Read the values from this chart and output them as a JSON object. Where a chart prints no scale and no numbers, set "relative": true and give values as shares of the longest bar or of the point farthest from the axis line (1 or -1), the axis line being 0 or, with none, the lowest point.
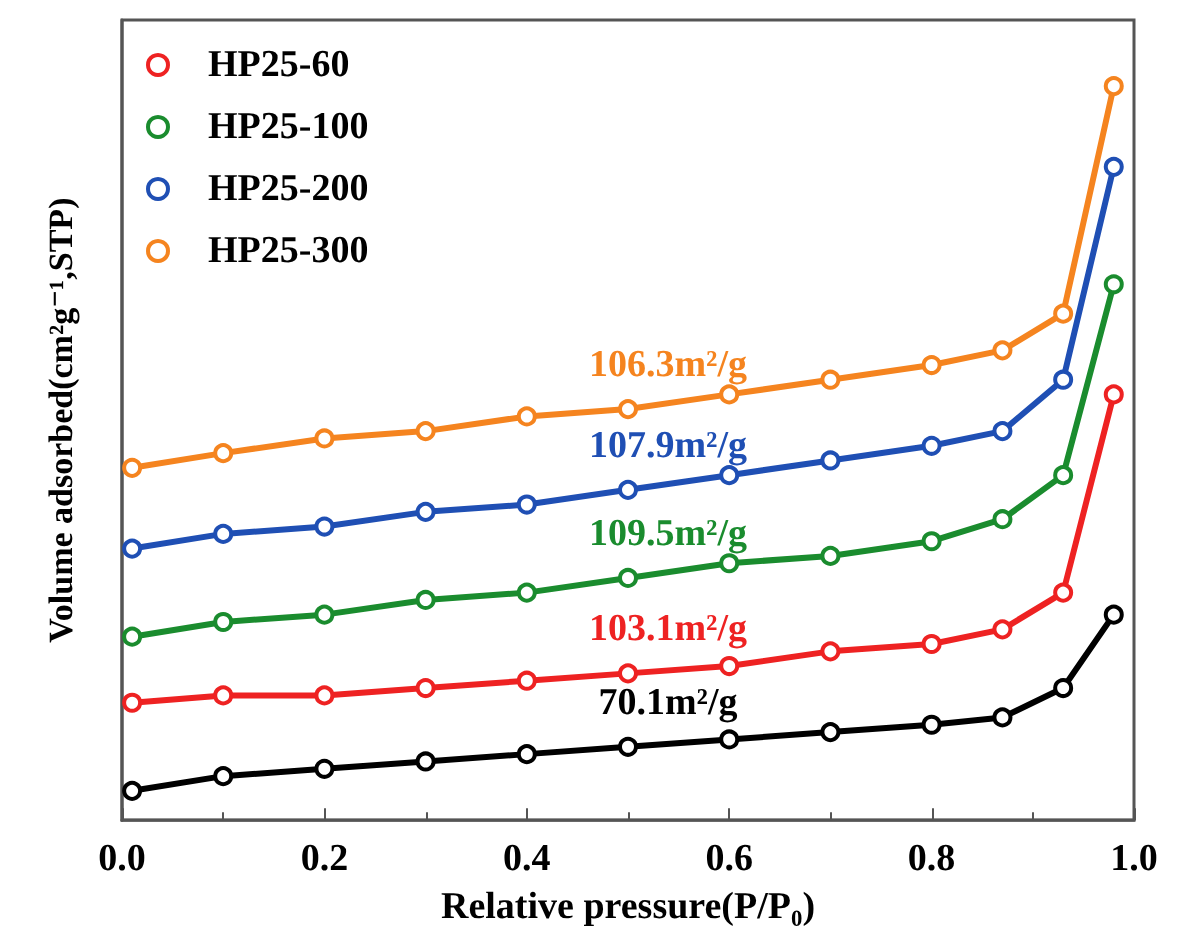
{
  "chart_data": {
    "type": "line",
    "relative": true,
    "xlabel": "Relative pressure(P/P₀)",
    "ylabel": "Volume adsorbed(cm²g⁻¹,STP)",
    "x": [
      0.01,
      0.1,
      0.2,
      0.3,
      0.4,
      0.5,
      0.6,
      0.7,
      0.8,
      0.87,
      0.93,
      0.98
    ],
    "xlim": [
      0,
      1
    ],
    "xticks": [
      {
        "value": 0,
        "label": "0.0"
      },
      {
        "value": 0.2,
        "label": "0.2"
      },
      {
        "value": 0.4,
        "label": "0.4"
      },
      {
        "value": 0.6,
        "label": "0.6"
      },
      {
        "value": 0.8,
        "label": "0.8"
      },
      {
        "value": 1,
        "label": "1.0"
      }
    ],
    "tick_labels": "x",
    "grid": false,
    "legend": "top left",
    "marker": "circle",
    "line_style": "solid",
    "series": [
      {
        "color": "#000000",
        "values": [
          0.04,
          0.06,
          0.07,
          0.08,
          0.09,
          0.1,
          0.11,
          0.12,
          0.13,
          0.14,
          0.18,
          0.28
        ]
      },
      {
        "name": "HP25-60",
        "color": "#ee2222",
        "values": [
          0.16,
          0.17,
          0.17,
          0.18,
          0.19,
          0.2,
          0.21,
          0.23,
          0.24,
          0.26,
          0.31,
          0.58
        ]
      },
      {
        "name": "HP25-100",
        "color": "#1a8c2e",
        "values": [
          0.25,
          0.27,
          0.28,
          0.3,
          0.31,
          0.33,
          0.35,
          0.36,
          0.38,
          0.41,
          0.47,
          0.73
        ]
      },
      {
        "name": "HP25-200",
        "color": "#1f4fb4",
        "values": [
          0.37,
          0.39,
          0.4,
          0.42,
          0.43,
          0.45,
          0.47,
          0.49,
          0.51,
          0.53,
          0.6,
          0.89
        ]
      },
      {
        "name": "HP25-300",
        "color": "#f5841f",
        "values": [
          0.48,
          0.5,
          0.52,
          0.53,
          0.55,
          0.56,
          0.58,
          0.6,
          0.62,
          0.64,
          0.69,
          1.0
        ]
      }
    ],
    "annotations": [
      "70.1m²/g",
      "103.1m²/g",
      "109.5m²/g",
      "107.9m²/g",
      "106.3m²/g"
    ]
  }
}
